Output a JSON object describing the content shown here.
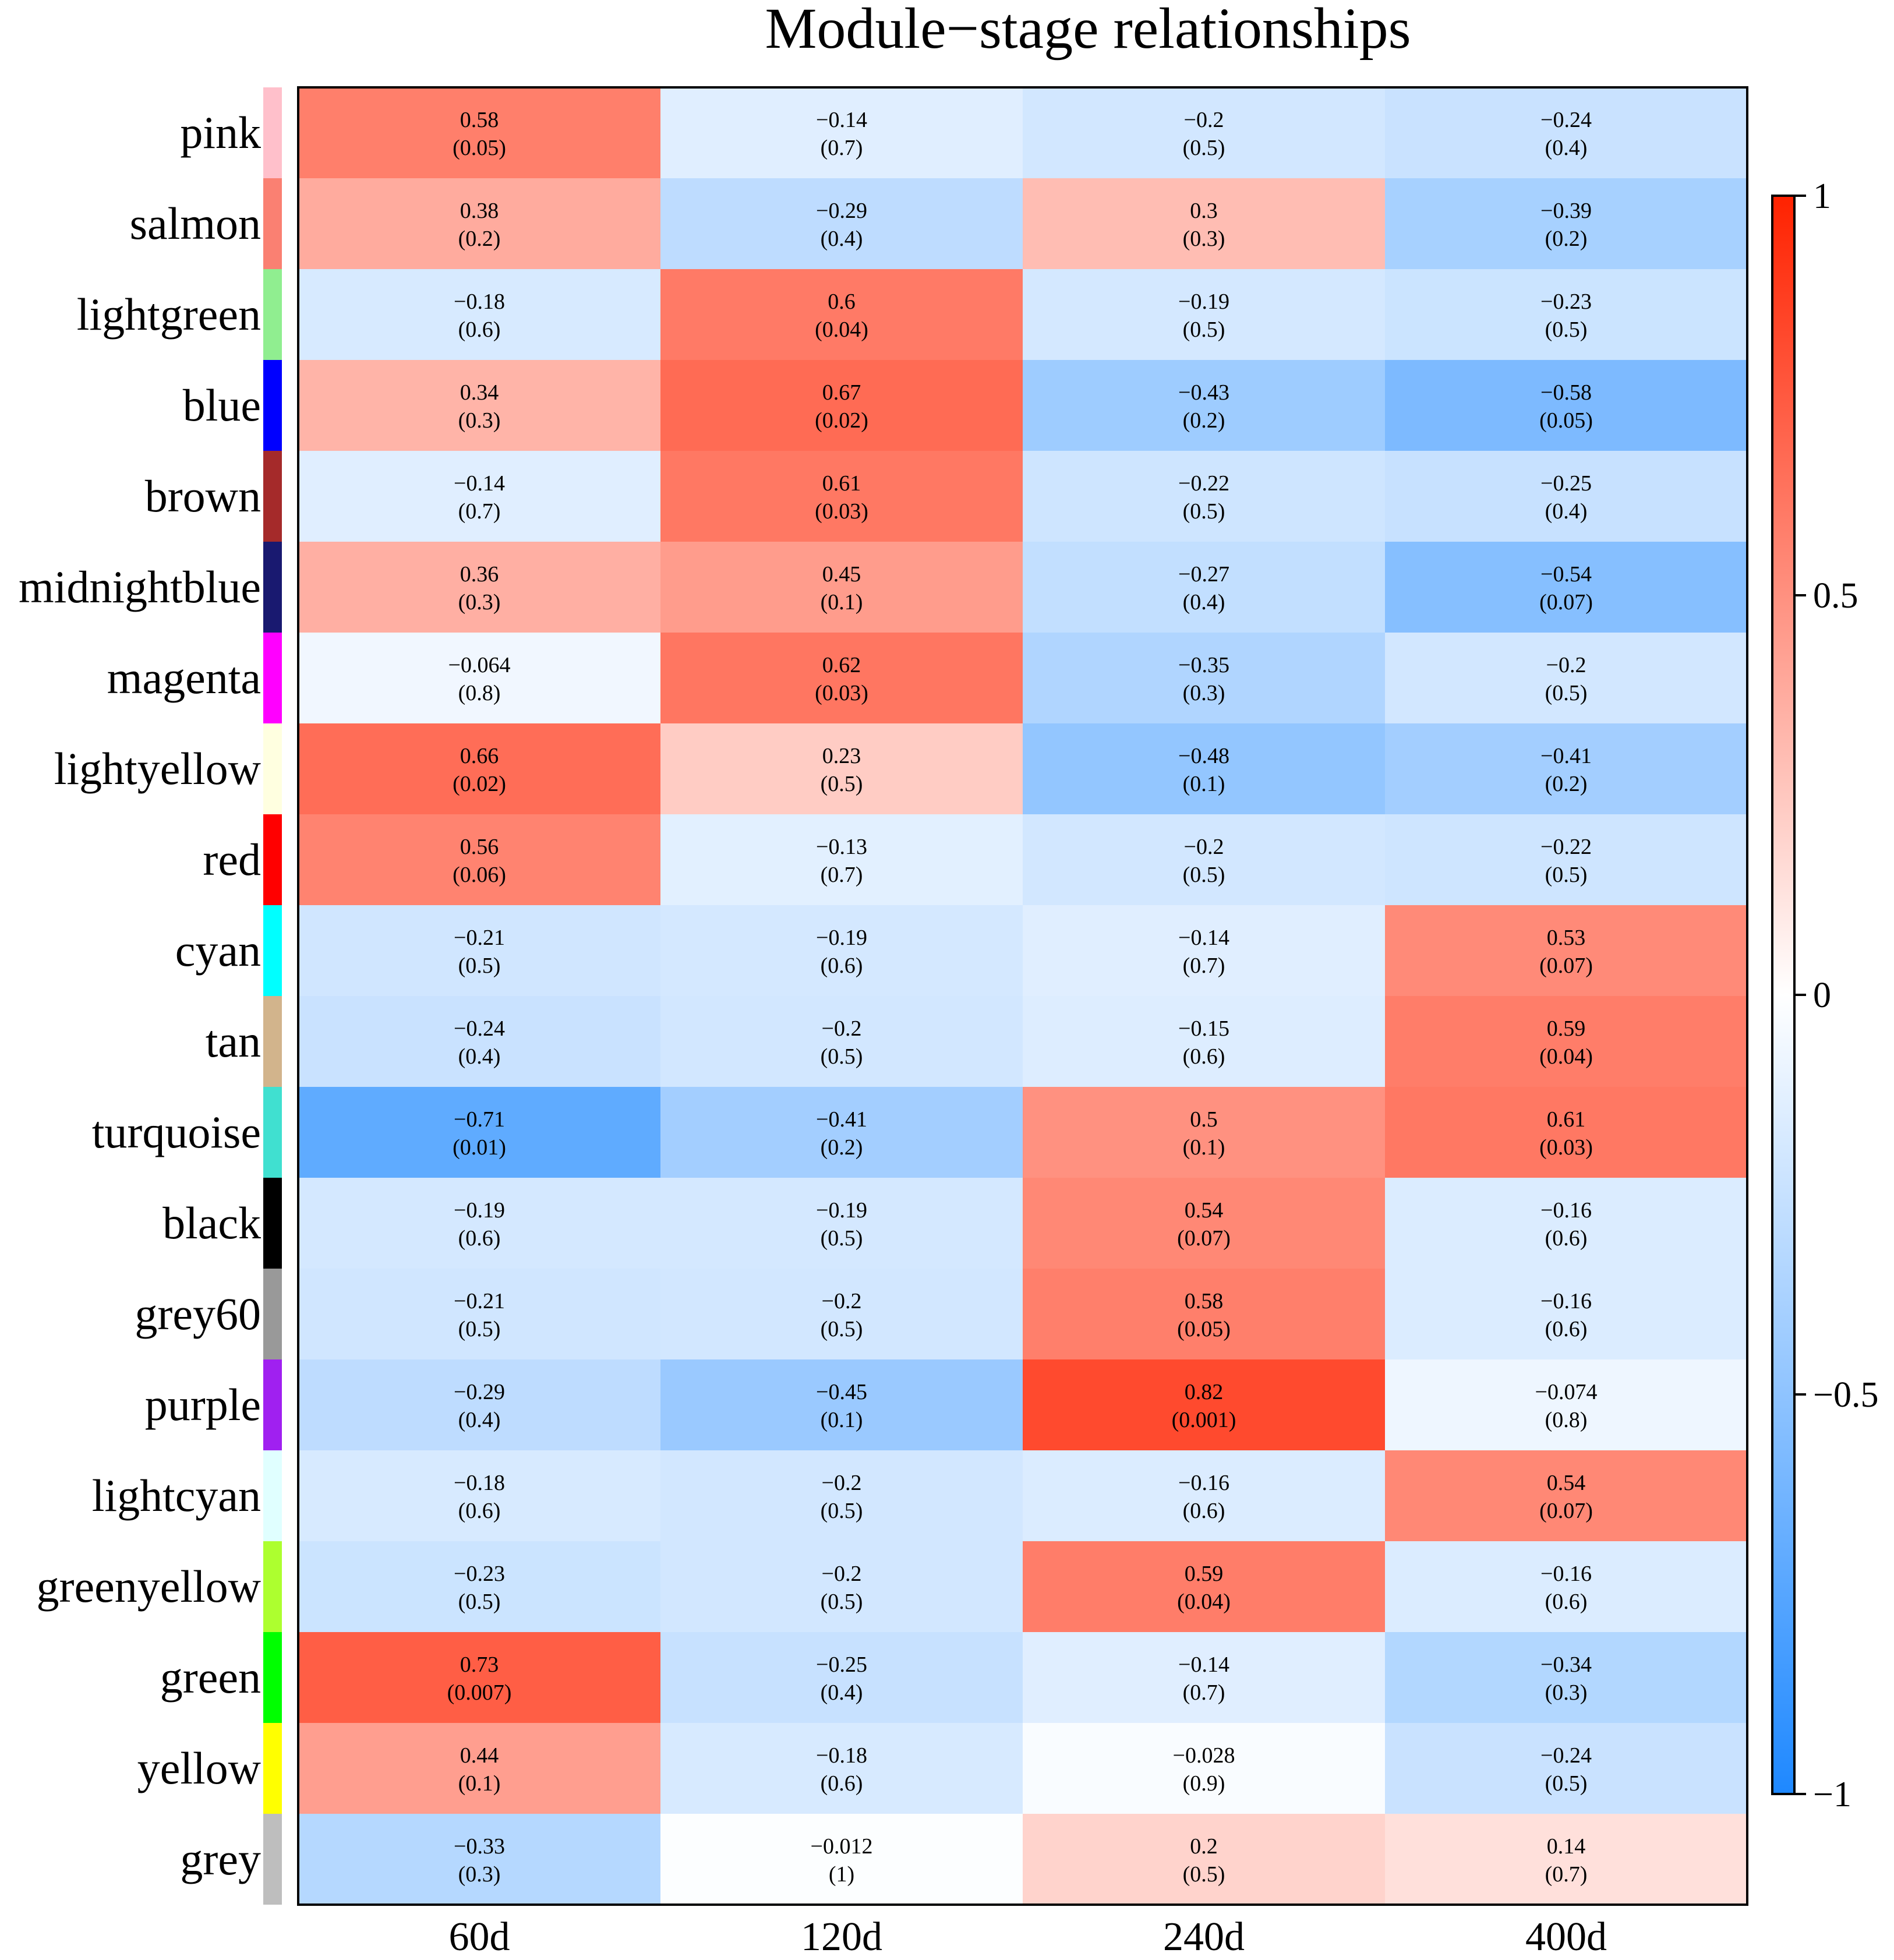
{
  "chart_data": {
    "type": "heatmap",
    "title": "Module−stage relationships",
    "columns": [
      "60d",
      "120d",
      "240d",
      "400d"
    ],
    "rows": [
      {
        "name": "pink",
        "color": "#FFC0CB"
      },
      {
        "name": "salmon",
        "color": "#FA8072"
      },
      {
        "name": "lightgreen",
        "color": "#90EE90"
      },
      {
        "name": "blue",
        "color": "#0000FF"
      },
      {
        "name": "brown",
        "color": "#A52A2A"
      },
      {
        "name": "midnightblue",
        "color": "#191970"
      },
      {
        "name": "magenta",
        "color": "#FF00FF"
      },
      {
        "name": "lightyellow",
        "color": "#FFFFE0"
      },
      {
        "name": "red",
        "color": "#FF0000"
      },
      {
        "name": "cyan",
        "color": "#00FFFF"
      },
      {
        "name": "tan",
        "color": "#D2B48C"
      },
      {
        "name": "turquoise",
        "color": "#40E0D0"
      },
      {
        "name": "black",
        "color": "#000000"
      },
      {
        "name": "grey60",
        "color": "#999999"
      },
      {
        "name": "purple",
        "color": "#A020F0"
      },
      {
        "name": "lightcyan",
        "color": "#E0FFFF"
      },
      {
        "name": "greenyellow",
        "color": "#ADFF2F"
      },
      {
        "name": "green",
        "color": "#00FF00"
      },
      {
        "name": "yellow",
        "color": "#FFFF00"
      },
      {
        "name": "grey",
        "color": "#BEBEBE"
      }
    ],
    "values": [
      [
        0.58,
        -0.14,
        -0.2,
        -0.24
      ],
      [
        0.38,
        -0.29,
        0.3,
        -0.39
      ],
      [
        -0.18,
        0.6,
        -0.19,
        -0.23
      ],
      [
        0.34,
        0.67,
        -0.43,
        -0.58
      ],
      [
        -0.14,
        0.61,
        -0.22,
        -0.25
      ],
      [
        0.36,
        0.45,
        -0.27,
        -0.54
      ],
      [
        -0.064,
        0.62,
        -0.35,
        -0.2
      ],
      [
        0.66,
        0.23,
        -0.48,
        -0.41
      ],
      [
        0.56,
        -0.13,
        -0.2,
        -0.22
      ],
      [
        -0.21,
        -0.19,
        -0.14,
        0.53
      ],
      [
        -0.24,
        -0.2,
        -0.15,
        0.59
      ],
      [
        -0.71,
        -0.41,
        0.5,
        0.61
      ],
      [
        -0.19,
        -0.19,
        0.54,
        -0.16
      ],
      [
        -0.21,
        -0.2,
        0.58,
        -0.16
      ],
      [
        -0.29,
        -0.45,
        0.82,
        -0.074
      ],
      [
        -0.18,
        -0.2,
        -0.16,
        0.54
      ],
      [
        -0.23,
        -0.2,
        0.59,
        -0.16
      ],
      [
        0.73,
        -0.25,
        -0.14,
        -0.34
      ],
      [
        0.44,
        -0.18,
        -0.028,
        -0.24
      ],
      [
        -0.33,
        -0.012,
        0.2,
        0.14
      ]
    ],
    "value_labels": [
      [
        "0.58",
        "−0.14",
        "−0.2",
        "−0.24"
      ],
      [
        "0.38",
        "−0.29",
        "0.3",
        "−0.39"
      ],
      [
        "−0.18",
        "0.6",
        "−0.19",
        "−0.23"
      ],
      [
        "0.34",
        "0.67",
        "−0.43",
        "−0.58"
      ],
      [
        "−0.14",
        "0.61",
        "−0.22",
        "−0.25"
      ],
      [
        "0.36",
        "0.45",
        "−0.27",
        "−0.54"
      ],
      [
        "−0.064",
        "0.62",
        "−0.35",
        "−0.2"
      ],
      [
        "0.66",
        "0.23",
        "−0.48",
        "−0.41"
      ],
      [
        "0.56",
        "−0.13",
        "−0.2",
        "−0.22"
      ],
      [
        "−0.21",
        "−0.19",
        "−0.14",
        "0.53"
      ],
      [
        "−0.24",
        "−0.2",
        "−0.15",
        "0.59"
      ],
      [
        "−0.71",
        "−0.41",
        "0.5",
        "0.61"
      ],
      [
        "−0.19",
        "−0.19",
        "0.54",
        "−0.16"
      ],
      [
        "−0.21",
        "−0.2",
        "0.58",
        "−0.16"
      ],
      [
        "−0.29",
        "−0.45",
        "0.82",
        "−0.074"
      ],
      [
        "−0.18",
        "−0.2",
        "−0.16",
        "0.54"
      ],
      [
        "−0.23",
        "−0.2",
        "0.59",
        "−0.16"
      ],
      [
        "0.73",
        "−0.25",
        "−0.14",
        "−0.34"
      ],
      [
        "0.44",
        "−0.18",
        "−0.028",
        "−0.24"
      ],
      [
        "−0.33",
        "−0.012",
        "0.2",
        "0.14"
      ]
    ],
    "pvalue_labels": [
      [
        "(0.05)",
        "(0.7)",
        "(0.5)",
        "(0.4)"
      ],
      [
        "(0.2)",
        "(0.4)",
        "(0.3)",
        "(0.2)"
      ],
      [
        "(0.6)",
        "(0.04)",
        "(0.5)",
        "(0.5)"
      ],
      [
        "(0.3)",
        "(0.02)",
        "(0.2)",
        "(0.05)"
      ],
      [
        "(0.7)",
        "(0.03)",
        "(0.5)",
        "(0.4)"
      ],
      [
        "(0.3)",
        "(0.1)",
        "(0.4)",
        "(0.07)"
      ],
      [
        "(0.8)",
        "(0.03)",
        "(0.3)",
        "(0.5)"
      ],
      [
        "(0.02)",
        "(0.5)",
        "(0.1)",
        "(0.2)"
      ],
      [
        "(0.06)",
        "(0.7)",
        "(0.5)",
        "(0.5)"
      ],
      [
        "(0.5)",
        "(0.6)",
        "(0.7)",
        "(0.07)"
      ],
      [
        "(0.4)",
        "(0.5)",
        "(0.6)",
        "(0.04)"
      ],
      [
        "(0.01)",
        "(0.2)",
        "(0.1)",
        "(0.03)"
      ],
      [
        "(0.6)",
        "(0.5)",
        "(0.07)",
        "(0.6)"
      ],
      [
        "(0.5)",
        "(0.5)",
        "(0.05)",
        "(0.6)"
      ],
      [
        "(0.4)",
        "(0.1)",
        "(0.001)",
        "(0.8)"
      ],
      [
        "(0.6)",
        "(0.5)",
        "(0.6)",
        "(0.07)"
      ],
      [
        "(0.5)",
        "(0.5)",
        "(0.04)",
        "(0.6)"
      ],
      [
        "(0.007)",
        "(0.4)",
        "(0.7)",
        "(0.3)"
      ],
      [
        "(0.1)",
        "(0.6)",
        "(0.9)",
        "(0.5)"
      ],
      [
        "(0.3)",
        "(1)",
        "(0.5)",
        "(0.7)"
      ]
    ],
    "colorbar": {
      "range": [
        -1,
        1
      ],
      "ticks": [
        1,
        0.5,
        0,
        -0.5,
        -1
      ],
      "tick_labels": [
        "1",
        "0.5",
        "0",
        "−0.5",
        "−1"
      ],
      "low_color": "#1E88FF",
      "mid_color": "#FFFFFF",
      "high_color": "#FF2200"
    }
  }
}
